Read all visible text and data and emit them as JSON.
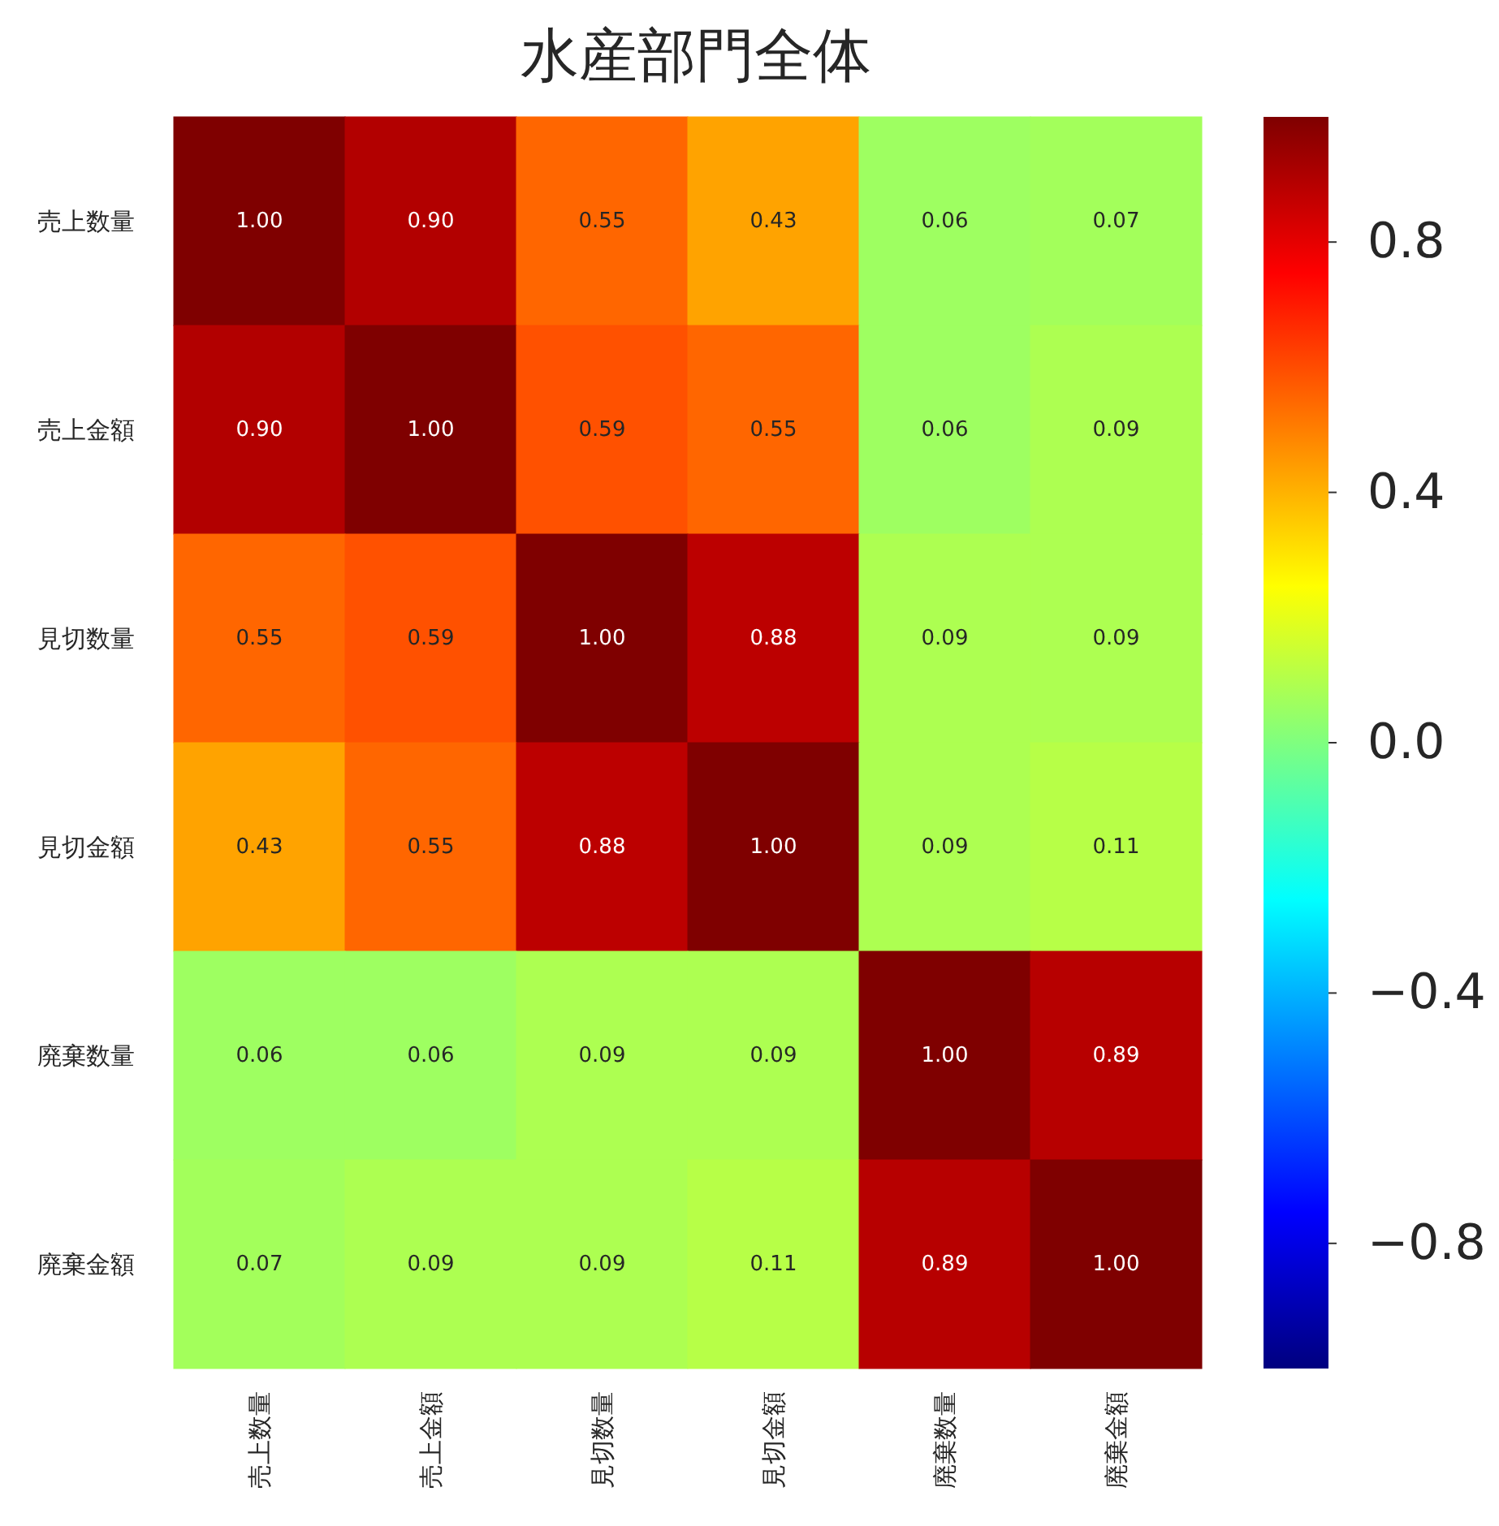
{
  "chart_data": {
    "type": "heatmap",
    "title": "水産部門全体",
    "categories": [
      "売上数量",
      "売上金額",
      "見切数量",
      "見切金額",
      "廃棄数量",
      "廃棄金額"
    ],
    "y_categories": [
      "売上数量",
      "売上金額",
      "見切数量",
      "見切金額",
      "廃棄数量",
      "廃棄金額"
    ],
    "cells": [
      [
        1,
        0.9,
        0.55,
        0.43,
        0.06,
        0.07
      ],
      [
        0.9,
        1,
        0.59,
        0.55,
        0.06,
        0.09
      ],
      [
        0.55,
        0.59,
        1,
        0.88,
        0.09,
        0.09
      ],
      [
        0.43,
        0.55,
        0.88,
        1,
        0.09,
        0.11
      ],
      [
        0.06,
        0.06,
        0.09,
        0.09,
        1,
        0.89
      ],
      [
        0.07,
        0.09,
        0.09,
        0.11,
        0.89,
        1
      ]
    ],
    "clim": [
      -1,
      1
    ],
    "cticks": [
      {
        "value": 0.8,
        "label": "0.8"
      },
      {
        "value": 0.4,
        "label": "0.4"
      },
      {
        "value": 0,
        "label": "0.0"
      },
      {
        "value": -0.4,
        "label": "−0.4"
      },
      {
        "value": -0.8,
        "label": "−0.8"
      }
    ],
    "cell_labels": [
      [
        "1.00",
        "0.90",
        "0.55",
        "0.43",
        "0.06",
        "0.07"
      ],
      [
        "0.90",
        "1.00",
        "0.59",
        "0.55",
        "0.06",
        "0.09"
      ],
      [
        "0.55",
        "0.59",
        "1.00",
        "0.88",
        "0.09",
        "0.09"
      ],
      [
        "0.43",
        "0.55",
        "0.88",
        "1.00",
        "0.09",
        "0.11"
      ],
      [
        "0.06",
        "0.06",
        "0.09",
        "0.09",
        "1.00",
        "0.89"
      ],
      [
        "0.07",
        "0.09",
        "0.09",
        "0.11",
        "0.89",
        "1.00"
      ]
    ]
  }
}
